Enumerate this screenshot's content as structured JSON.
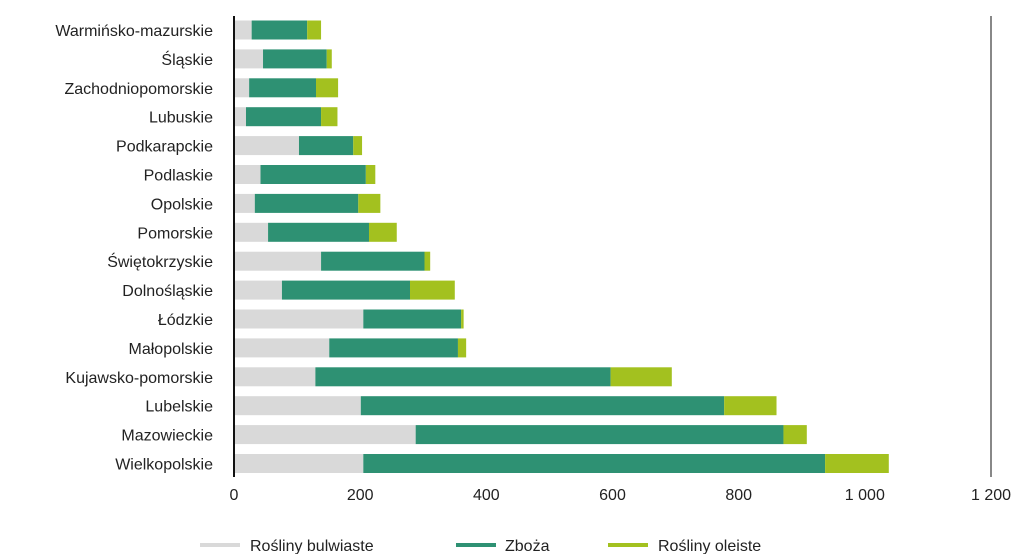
{
  "chart_data": {
    "type": "bar",
    "orientation": "horizontal",
    "stacked": true,
    "categories": [
      "Warmińsko-mazurskie",
      "Śląskie",
      "Zachodniopomorskie",
      "Lubuskie",
      "Podkarapckie",
      "Podlaskie",
      "Opolskie",
      "Pomorskie",
      "Świętokrzyskie",
      "Dolnośląskie",
      "Łódzkie",
      "Małopolskie",
      "Kujawsko-pomorskie",
      "Lubelskie",
      "Mazowieckie",
      "Wielkopolskie"
    ],
    "series": [
      {
        "name": "Rośliny bulwiaste",
        "color": "#d9d9d9",
        "values": [
          28,
          46,
          24,
          19,
          103,
          42,
          33,
          54,
          138,
          76,
          205,
          151,
          129,
          201,
          288,
          205
        ]
      },
      {
        "name": "Zboża",
        "color": "#2e9173",
        "values": [
          88,
          101,
          106,
          119,
          86,
          167,
          164,
          160,
          164,
          203,
          155,
          204,
          468,
          576,
          583,
          732
        ]
      },
      {
        "name": "Rośliny oleiste",
        "color": "#a3c11f",
        "values": [
          22,
          8,
          35,
          26,
          14,
          15,
          35,
          44,
          9,
          71,
          4,
          13,
          97,
          83,
          37,
          101
        ]
      }
    ],
    "xlim": [
      0,
      1200
    ],
    "xticks": [
      0,
      200,
      400,
      600,
      800,
      1000,
      1200
    ],
    "xtick_labels": [
      "0",
      "200",
      "400",
      "600",
      "800",
      "1 000",
      "1 200"
    ],
    "grid": false,
    "legend": "bottom",
    "title": "",
    "xlabel": "",
    "ylabel": ""
  }
}
